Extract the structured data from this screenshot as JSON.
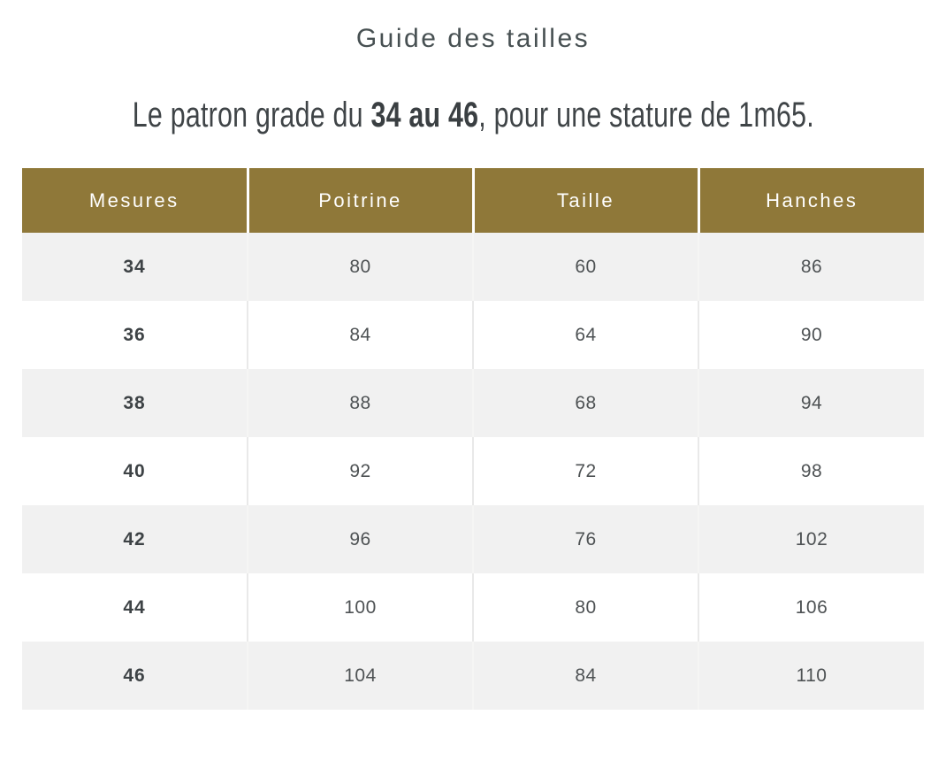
{
  "title": "Guide des tailles",
  "subtitle": {
    "prefix": "Le patron grade du ",
    "highlight": "34 au 46",
    "suffix": ", pour une stature de 1m65."
  },
  "table": {
    "columns": [
      "Mesures",
      "Poitrine",
      "Taille",
      "Hanches"
    ],
    "rows": [
      {
        "cells": [
          "34",
          "80",
          "60",
          "86"
        ]
      },
      {
        "cells": [
          "36",
          "84",
          "64",
          "90"
        ]
      },
      {
        "cells": [
          "38",
          "88",
          "68",
          "94"
        ]
      },
      {
        "cells": [
          "40",
          "92",
          "72",
          "98"
        ]
      },
      {
        "cells": [
          "42",
          "96",
          "76",
          "102"
        ]
      },
      {
        "cells": [
          "44",
          "100",
          "80",
          "106"
        ]
      },
      {
        "cells": [
          "46",
          "104",
          "84",
          "110"
        ]
      }
    ],
    "colors": {
      "header_bg": "#8f7839",
      "header_text": "#ffffff",
      "row_shaded_bg": "#f1f1f1",
      "row_plain_bg": "#ffffff",
      "cell_divider": "#e9e9e9",
      "body_text": "#4e5254",
      "size_column_text": "#3e4346",
      "title_text": "#475052"
    }
  }
}
